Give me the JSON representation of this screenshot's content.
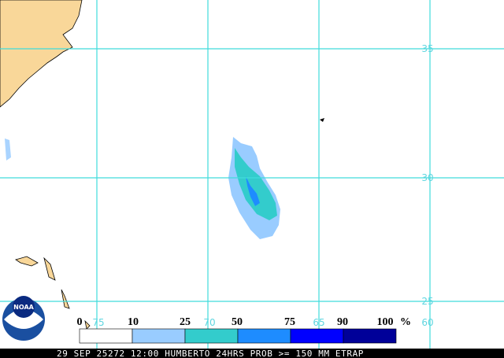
{
  "map": {
    "lat_labels": [
      "35",
      "30",
      "25"
    ],
    "lon_labels": [
      "75",
      "70",
      "65",
      "60"
    ],
    "logo": "NOAA"
  },
  "legend": {
    "labels": [
      "0",
      "10",
      "25",
      "50",
      "75",
      "90",
      "100"
    ],
    "unit": "%",
    "colors": [
      "#ffffff",
      "#99ccff",
      "#33cccc",
      "#1e8cff",
      "#0000ff",
      "#000099"
    ]
  },
  "footer": "29 SEP 25272 12:00 HUMBERTO 24HRS PROB >= 150 MM ETRAP"
}
